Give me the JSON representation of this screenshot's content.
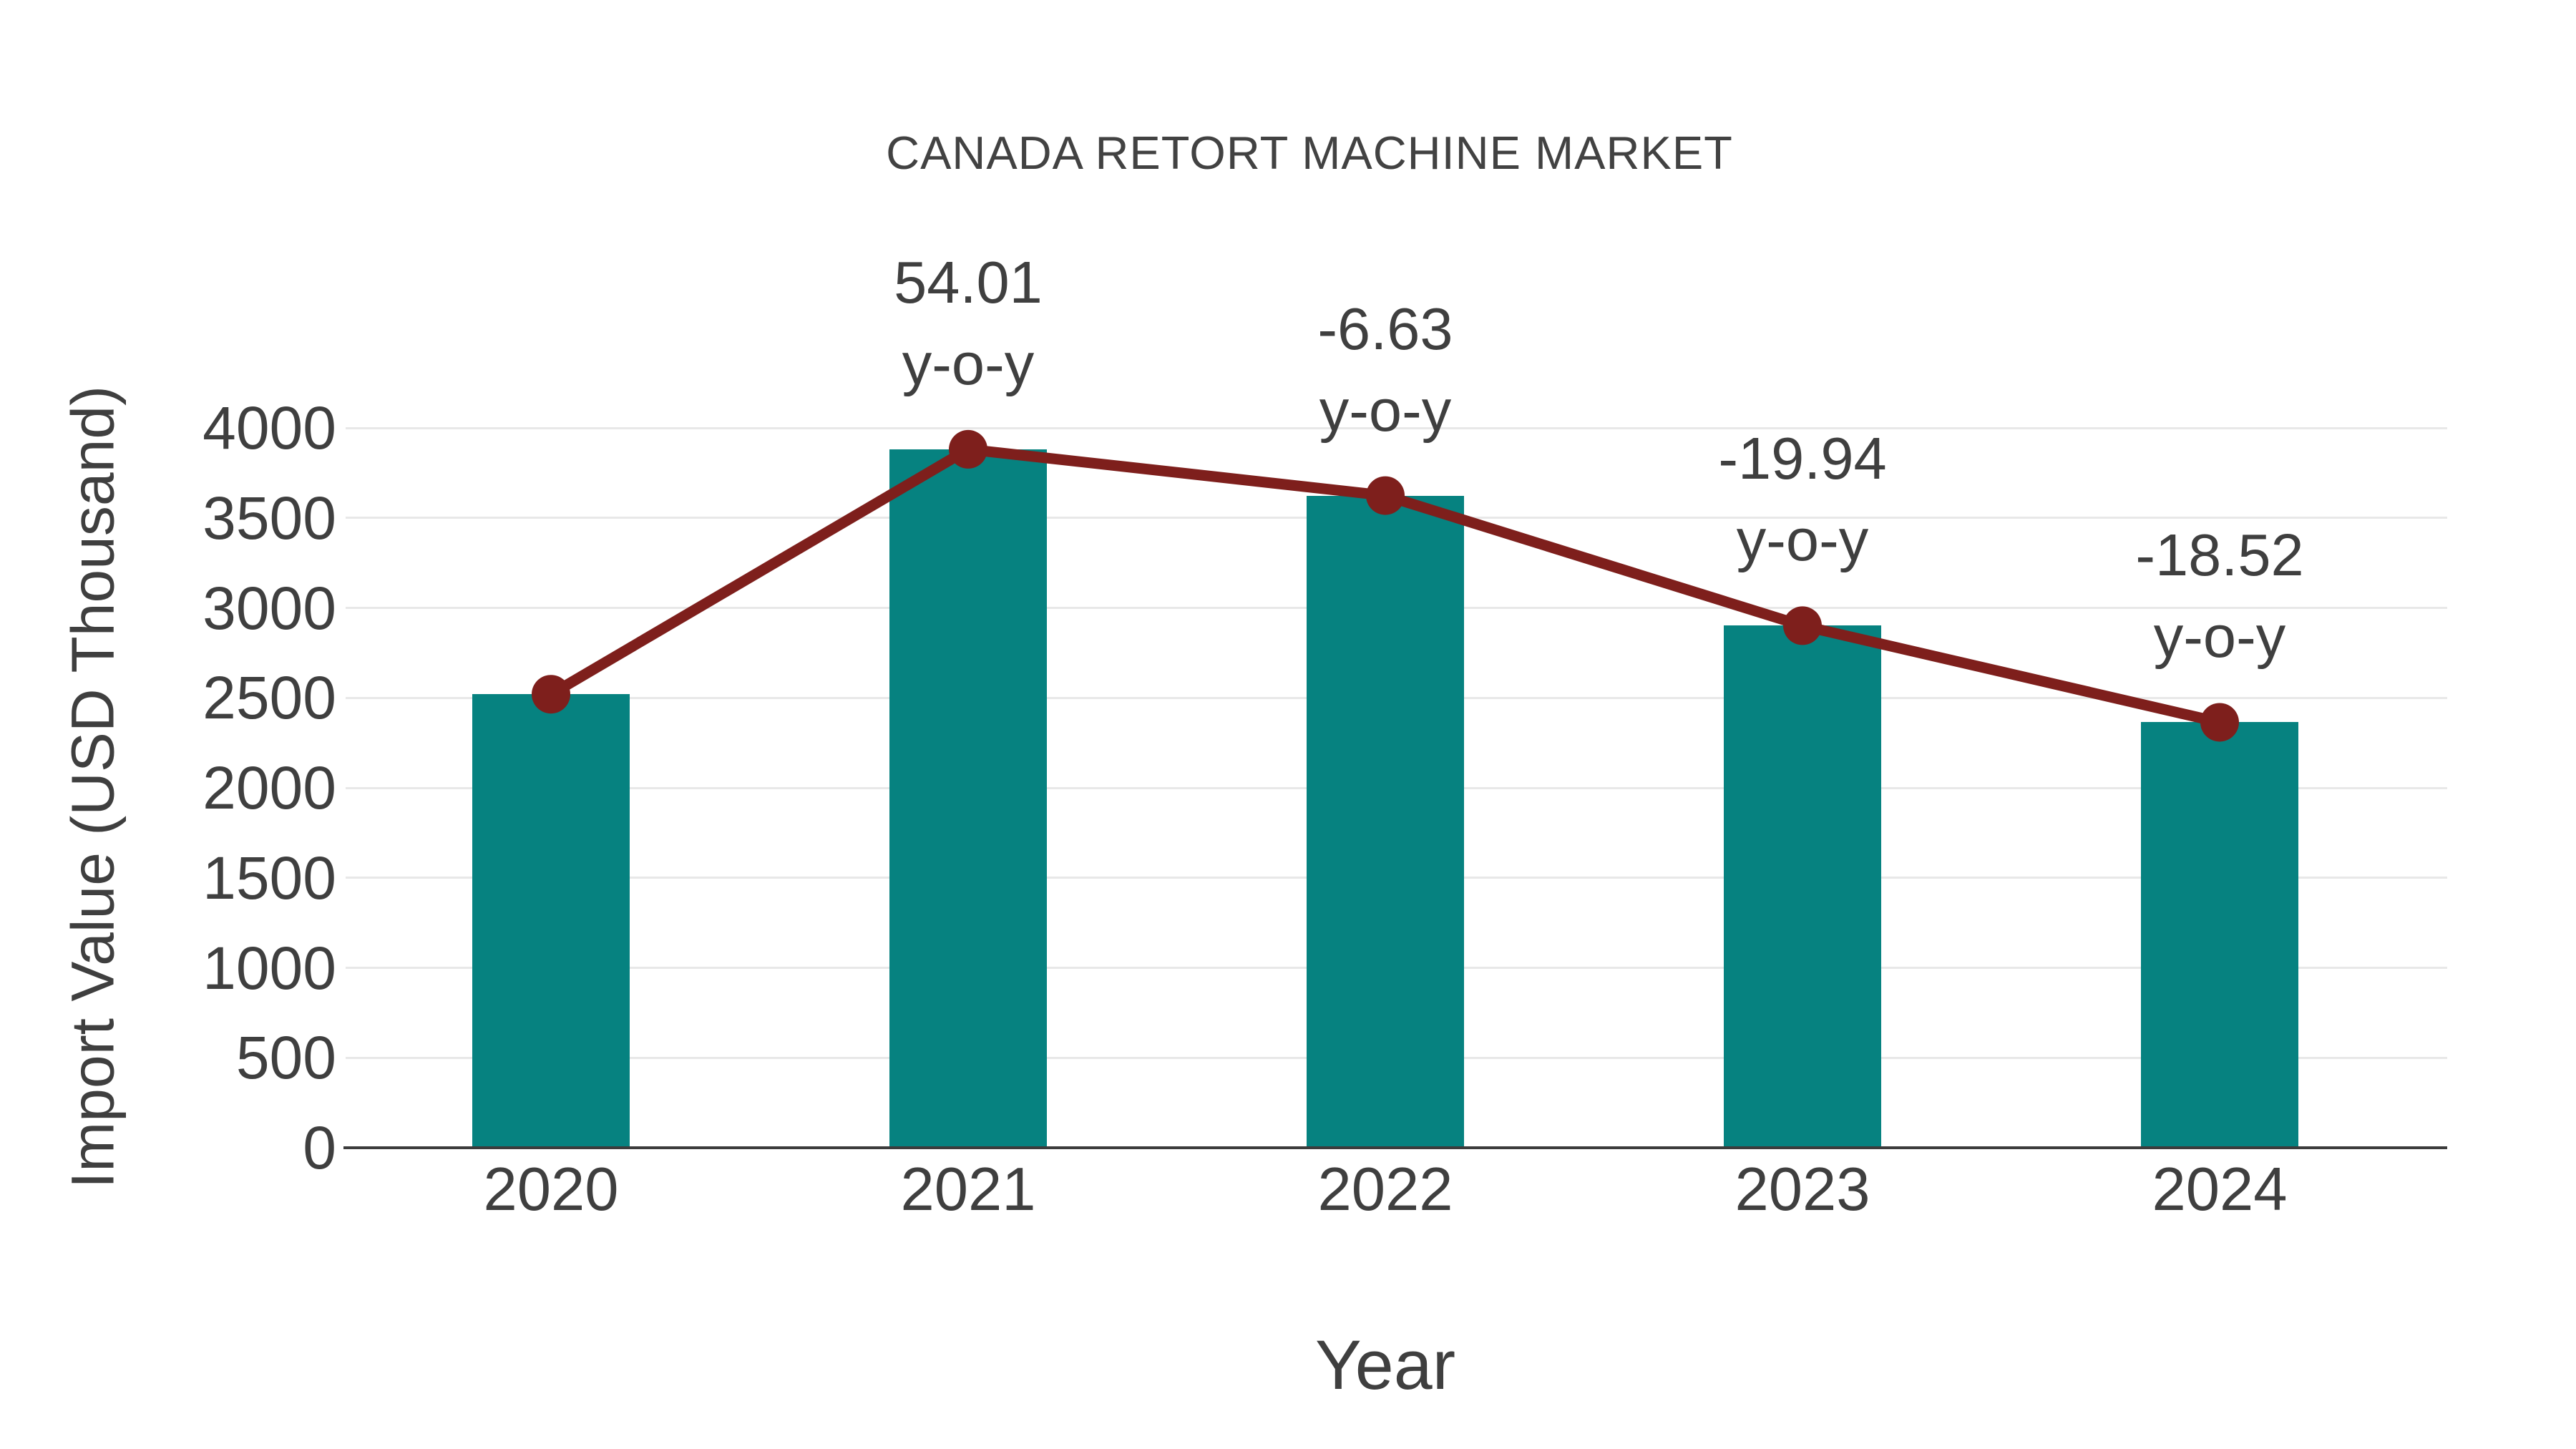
{
  "chart_data": {
    "type": "bar",
    "title": "CANADA RETORT MACHINE MARKET",
    "xlabel": "Year",
    "ylabel": "Import Value (USD Thousand)",
    "categories": [
      "2020",
      "2021",
      "2022",
      "2023",
      "2024"
    ],
    "series": [
      {
        "name": "import-value-bars",
        "type": "bar",
        "values": [
          2520,
          3881,
          3624,
          2901,
          2364
        ]
      },
      {
        "name": "import-value-trend-line",
        "type": "line",
        "values": [
          2520,
          3881,
          3624,
          2901,
          2364
        ]
      }
    ],
    "annotations": [
      {
        "category": "2021",
        "line1": "54.01",
        "line2": "y-o-y"
      },
      {
        "category": "2022",
        "line1": "-6.63",
        "line2": "y-o-y"
      },
      {
        "category": "2023",
        "line1": "-19.94",
        "line2": "y-o-y"
      },
      {
        "category": "2024",
        "line1": "-18.52",
        "line2": "y-o-y"
      }
    ],
    "y_ticks": [
      0,
      500,
      1000,
      1500,
      2000,
      2500,
      3000,
      3500,
      4000
    ],
    "ylim": [
      0,
      4000
    ],
    "grid": true,
    "legend": false,
    "colors": {
      "bar": "#068280",
      "line": "#7e1f1c",
      "marker": "#7e1f1c",
      "text": "#3f3f3f",
      "gridline": "#e8e8e8",
      "axis": "#3c3c3c",
      "background": "#ffffff"
    }
  }
}
